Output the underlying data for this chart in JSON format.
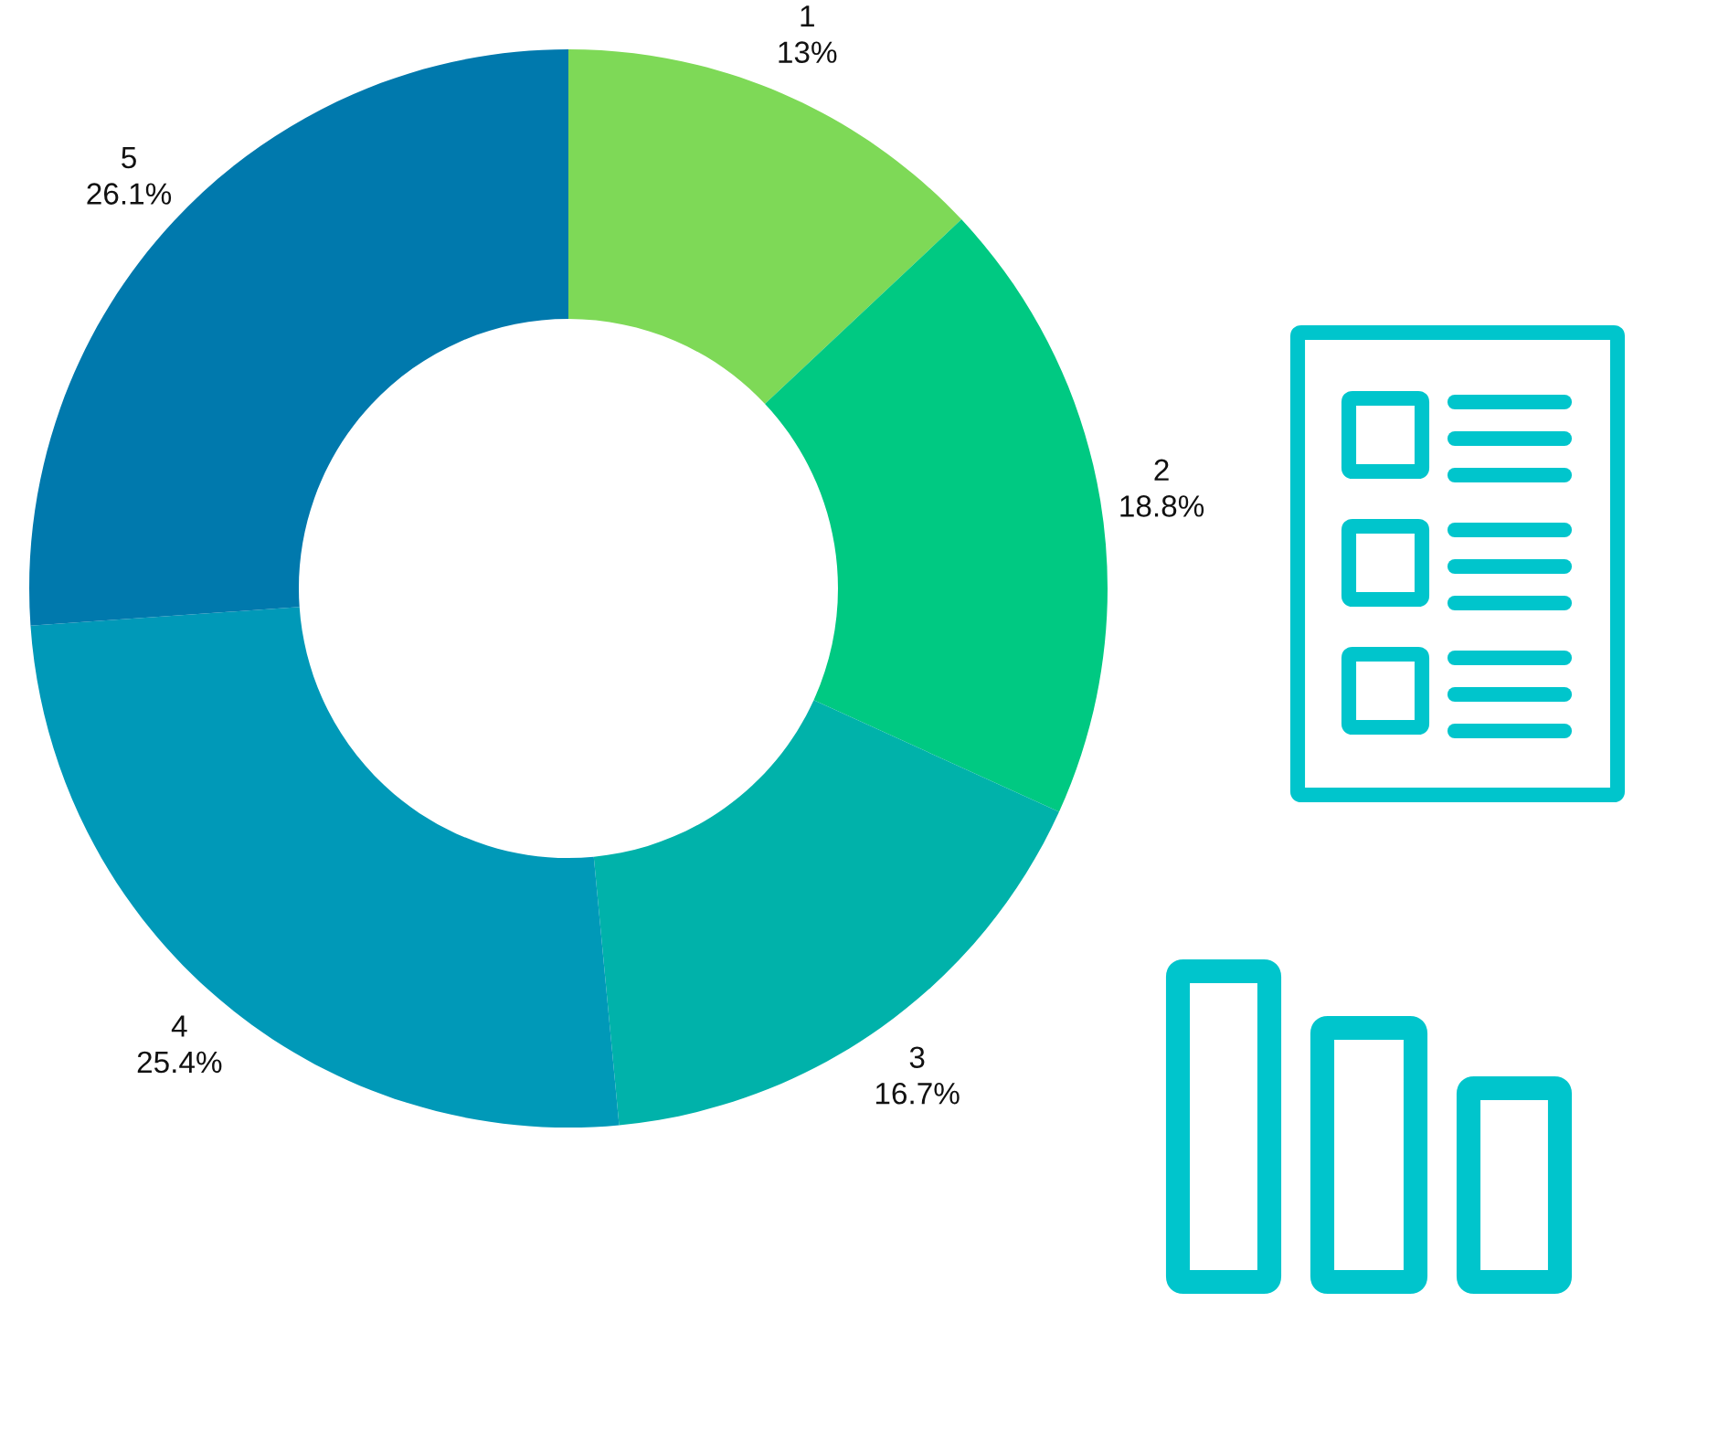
{
  "chart_data": {
    "type": "donut",
    "categories": [
      "1",
      "2",
      "3",
      "4",
      "5"
    ],
    "values": [
      13,
      18.8,
      16.7,
      25.4,
      26.1
    ],
    "value_labels": [
      "13%",
      "18.8%",
      "16.7%",
      "25.4%",
      "26.1%"
    ],
    "colors": [
      "#7ed957",
      "#00c982",
      "#00b2aa",
      "#0099b8",
      "#0079ad"
    ]
  }
}
